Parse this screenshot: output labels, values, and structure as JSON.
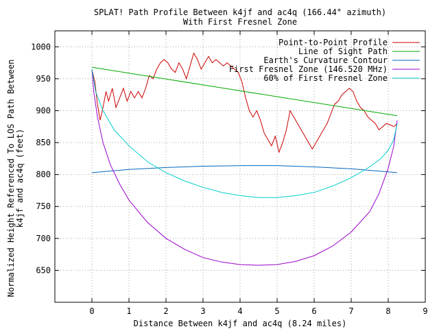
{
  "chart_data": {
    "type": "line",
    "title": "SPLAT! Path Profile Between k4jf and ac4q (166.44° azimuth)",
    "subtitle": "With First Fresnel Zone",
    "xlabel": "Distance Between k4jf and ac4q (8.24 miles)",
    "ylabel_lines": [
      "Normalized Height Referenced To LOS Path Between",
      "k4jf and ac4q (feet)"
    ],
    "xlim": [
      -1,
      9
    ],
    "ylim": [
      600,
      1025
    ],
    "xticks": [
      0,
      1,
      2,
      3,
      4,
      5,
      6,
      7,
      8,
      9
    ],
    "yticks": [
      650,
      700,
      750,
      800,
      850,
      900,
      950,
      1000
    ],
    "grid": true,
    "legend_position": "top-right",
    "series": [
      {
        "name": "Point-to-Point Profile",
        "color": "#cc0000",
        "values": [
          [
            0.0,
            965
          ],
          [
            0.08,
            945
          ],
          [
            0.15,
            910
          ],
          [
            0.22,
            885
          ],
          [
            0.3,
            905
          ],
          [
            0.38,
            930
          ],
          [
            0.45,
            915
          ],
          [
            0.55,
            935
          ],
          [
            0.65,
            905
          ],
          [
            0.75,
            920
          ],
          [
            0.85,
            935
          ],
          [
            0.95,
            915
          ],
          [
            1.05,
            930
          ],
          [
            1.15,
            920
          ],
          [
            1.25,
            930
          ],
          [
            1.35,
            920
          ],
          [
            1.45,
            935
          ],
          [
            1.55,
            955
          ],
          [
            1.65,
            950
          ],
          [
            1.75,
            965
          ],
          [
            1.85,
            975
          ],
          [
            1.95,
            980
          ],
          [
            2.05,
            975
          ],
          [
            2.15,
            965
          ],
          [
            2.25,
            960
          ],
          [
            2.35,
            975
          ],
          [
            2.45,
            965
          ],
          [
            2.55,
            950
          ],
          [
            2.65,
            970
          ],
          [
            2.75,
            990
          ],
          [
            2.85,
            980
          ],
          [
            2.95,
            965
          ],
          [
            3.05,
            975
          ],
          [
            3.15,
            985
          ],
          [
            3.25,
            975
          ],
          [
            3.35,
            980
          ],
          [
            3.45,
            975
          ],
          [
            3.55,
            970
          ],
          [
            3.65,
            975
          ],
          [
            3.75,
            970
          ],
          [
            3.85,
            965
          ],
          [
            3.95,
            960
          ],
          [
            4.05,
            945
          ],
          [
            4.15,
            920
          ],
          [
            4.25,
            900
          ],
          [
            4.35,
            890
          ],
          [
            4.45,
            900
          ],
          [
            4.55,
            885
          ],
          [
            4.65,
            865
          ],
          [
            4.75,
            855
          ],
          [
            4.85,
            845
          ],
          [
            4.95,
            860
          ],
          [
            5.05,
            835
          ],
          [
            5.15,
            850
          ],
          [
            5.25,
            870
          ],
          [
            5.35,
            900
          ],
          [
            5.45,
            890
          ],
          [
            5.55,
            880
          ],
          [
            5.65,
            870
          ],
          [
            5.75,
            860
          ],
          [
            5.85,
            850
          ],
          [
            5.95,
            840
          ],
          [
            6.05,
            850
          ],
          [
            6.15,
            860
          ],
          [
            6.25,
            870
          ],
          [
            6.35,
            880
          ],
          [
            6.45,
            895
          ],
          [
            6.55,
            910
          ],
          [
            6.65,
            915
          ],
          [
            6.75,
            925
          ],
          [
            6.85,
            930
          ],
          [
            6.95,
            935
          ],
          [
            7.05,
            930
          ],
          [
            7.15,
            915
          ],
          [
            7.25,
            905
          ],
          [
            7.35,
            900
          ],
          [
            7.45,
            890
          ],
          [
            7.55,
            885
          ],
          [
            7.65,
            880
          ],
          [
            7.75,
            870
          ],
          [
            7.85,
            875
          ],
          [
            7.95,
            880
          ],
          [
            8.05,
            878
          ],
          [
            8.15,
            875
          ],
          [
            8.24,
            880
          ]
        ]
      },
      {
        "name": "Line of Sight Path",
        "color": "#00aa00",
        "values": [
          [
            0.0,
            968
          ],
          [
            8.24,
            892
          ]
        ]
      },
      {
        "name": "Earth's Curvature Contour",
        "color": "#0066bb",
        "values": [
          [
            0.0,
            803
          ],
          [
            1.0,
            808
          ],
          [
            2.0,
            811
          ],
          [
            3.0,
            813
          ],
          [
            4.12,
            814
          ],
          [
            5.0,
            814
          ],
          [
            6.0,
            812
          ],
          [
            7.0,
            809
          ],
          [
            8.24,
            803
          ]
        ]
      },
      {
        "name": "First Fresnel Zone (146.520 MHz)",
        "color": "#9900cc",
        "values": [
          [
            0.0,
            965
          ],
          [
            0.05,
            930
          ],
          [
            0.15,
            890
          ],
          [
            0.3,
            850
          ],
          [
            0.5,
            815
          ],
          [
            0.75,
            785
          ],
          [
            1.0,
            760
          ],
          [
            1.5,
            725
          ],
          [
            2.0,
            700
          ],
          [
            2.5,
            683
          ],
          [
            3.0,
            670
          ],
          [
            3.5,
            663
          ],
          [
            4.0,
            659
          ],
          [
            4.5,
            658
          ],
          [
            5.0,
            659
          ],
          [
            5.5,
            664
          ],
          [
            6.0,
            673
          ],
          [
            6.5,
            688
          ],
          [
            7.0,
            710
          ],
          [
            7.5,
            742
          ],
          [
            7.75,
            770
          ],
          [
            8.0,
            810
          ],
          [
            8.15,
            845
          ],
          [
            8.24,
            885
          ]
        ]
      },
      {
        "name": "60% of First Fresnel Zone",
        "color": "#00cccc",
        "values": [
          [
            0.0,
            965
          ],
          [
            0.1,
            930
          ],
          [
            0.3,
            900
          ],
          [
            0.6,
            870
          ],
          [
            1.0,
            845
          ],
          [
            1.5,
            820
          ],
          [
            2.0,
            803
          ],
          [
            2.5,
            790
          ],
          [
            3.0,
            780
          ],
          [
            3.5,
            772
          ],
          [
            4.0,
            767
          ],
          [
            4.5,
            764
          ],
          [
            5.0,
            764
          ],
          [
            5.5,
            767
          ],
          [
            6.0,
            772
          ],
          [
            6.5,
            782
          ],
          [
            7.0,
            795
          ],
          [
            7.5,
            812
          ],
          [
            7.8,
            825
          ],
          [
            8.0,
            838
          ],
          [
            8.15,
            855
          ],
          [
            8.24,
            880
          ]
        ]
      }
    ]
  }
}
